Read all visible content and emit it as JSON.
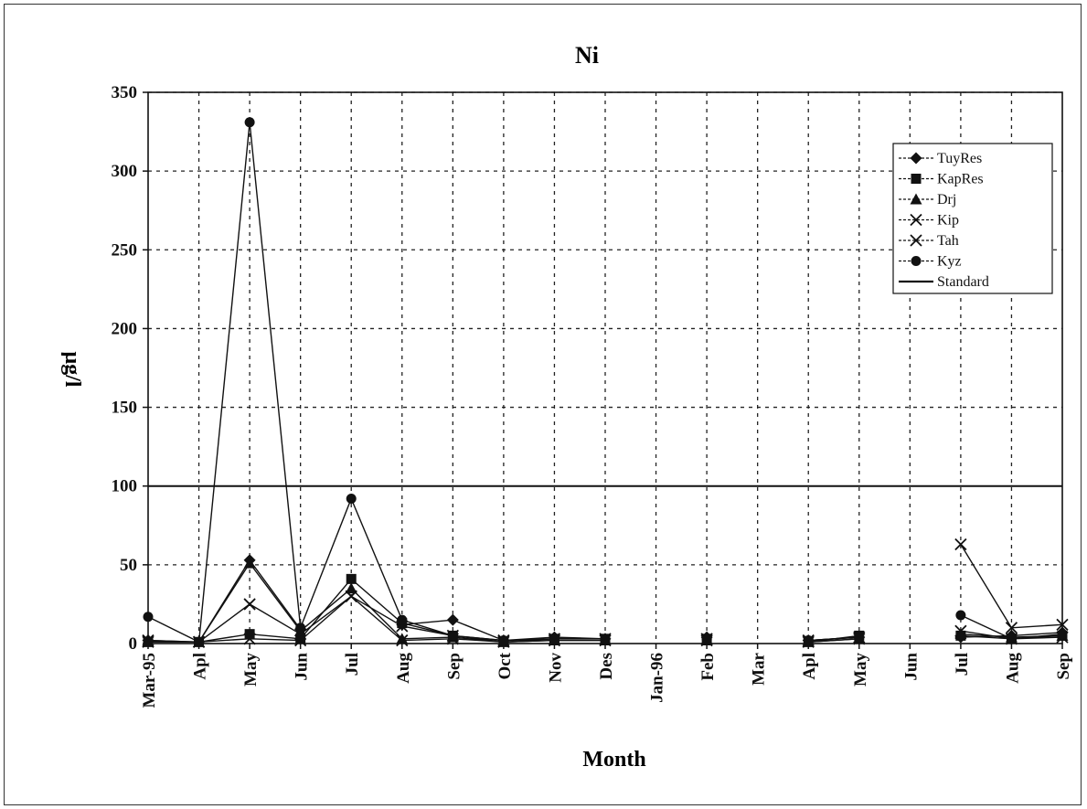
{
  "chart_data": {
    "type": "line",
    "title": "Ni",
    "xlabel": "Month",
    "ylabel": "µg/l",
    "ylim": [
      0,
      350
    ],
    "yticks": [
      0,
      50,
      100,
      150,
      200,
      250,
      300,
      350
    ],
    "categories": [
      "Mar-95",
      "Apl",
      "May",
      "Jun",
      "Jul",
      "Aug",
      "Sep",
      "Oct",
      "Nov",
      "Des",
      "Jan-96",
      "Feb",
      "Mar",
      "Apl",
      "May",
      "Jun",
      "Jul",
      "Aug",
      "Sep"
    ],
    "grid": true,
    "legend_position": "top-right",
    "series": [
      {
        "name": "TuyRes",
        "marker": "diamond",
        "values": [
          2,
          1,
          53,
          9,
          null,
          12,
          15,
          2,
          4,
          3,
          null,
          4,
          null,
          2,
          4,
          null,
          4,
          5,
          7
        ]
      },
      {
        "name": "KapRes",
        "marker": "square",
        "values": [
          1,
          1,
          6,
          3,
          41,
          13,
          5,
          1,
          3,
          3,
          null,
          3,
          null,
          1,
          5,
          null,
          5,
          3,
          5
        ]
      },
      {
        "name": "Drj",
        "marker": "triangle",
        "values": [
          1,
          1,
          51,
          8,
          35,
          3,
          4,
          1,
          2,
          2,
          null,
          2,
          null,
          1,
          3,
          null,
          6,
          4,
          5
        ]
      },
      {
        "name": "Kip",
        "marker": "x",
        "values": [
          2,
          1,
          25,
          6,
          30,
          11,
          5,
          2,
          3,
          3,
          null,
          3,
          null,
          2,
          4,
          null,
          63,
          10,
          12
        ]
      },
      {
        "name": "Tah",
        "marker": "x",
        "values": [
          1,
          1,
          3,
          2,
          30,
          2,
          3,
          1,
          2,
          2,
          null,
          2,
          null,
          1,
          3,
          null,
          8,
          3,
          4
        ]
      },
      {
        "name": "Kyz",
        "marker": "circle",
        "values": [
          17,
          1,
          331,
          10,
          92,
          15,
          5,
          2,
          3,
          3,
          null,
          3,
          null,
          2,
          4,
          null,
          18,
          3,
          6
        ]
      },
      {
        "name": "Standard",
        "marker": "none",
        "values": [
          100,
          100,
          100,
          100,
          100,
          100,
          100,
          100,
          100,
          100,
          100,
          100,
          100,
          100,
          100,
          100,
          100,
          100,
          100
        ]
      }
    ]
  }
}
